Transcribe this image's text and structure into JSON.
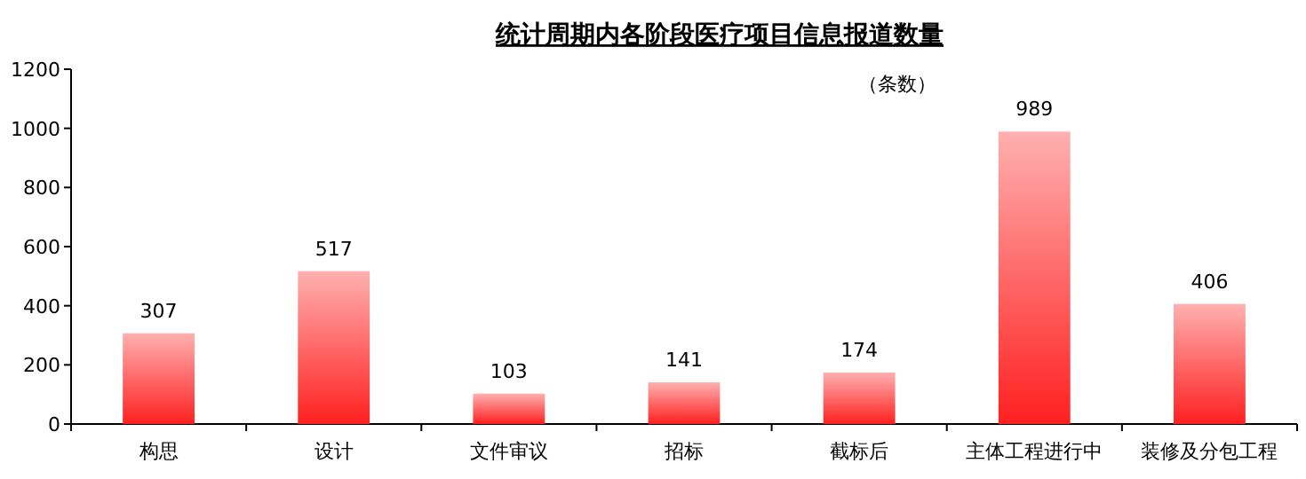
{
  "chart_data": {
    "type": "bar",
    "title": "统计周期内各阶段医疗项目信息报道数量",
    "annotations": [
      "（条数）"
    ],
    "categories": [
      "构思",
      "设计",
      "文件审议",
      "招标",
      "截标后",
      "主体工程进行中",
      "装修及分包工程"
    ],
    "values": [
      307,
      517,
      103,
      141,
      174,
      989,
      406
    ],
    "color": "#ff2020",
    "ylim": [
      0,
      1200
    ],
    "yticks": [
      0,
      200,
      400,
      600,
      800,
      1000,
      1200
    ],
    "data_labels": true
  }
}
